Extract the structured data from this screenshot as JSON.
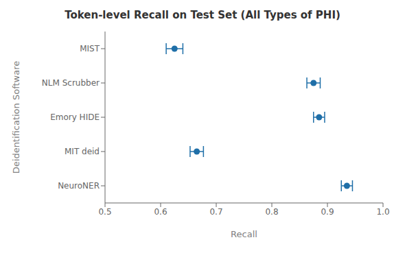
{
  "chart_data": {
    "type": "scatter",
    "title": "Token-level Recall on Test Set (All Types of PHI)",
    "xlabel": "Recall",
    "ylabel": "Deidentification Software",
    "categories": [
      "MIST",
      "NLM Scrubber",
      "Emory HIDE",
      "MIT deid",
      "NeuroNER"
    ],
    "values": [
      0.625,
      0.875,
      0.885,
      0.665,
      0.935
    ],
    "xerr_low": [
      0.015,
      0.012,
      0.01,
      0.012,
      0.01
    ],
    "xerr_high": [
      0.015,
      0.012,
      0.01,
      0.012,
      0.01
    ],
    "xlim": [
      0.5,
      1.0
    ],
    "xticks": [
      0.5,
      0.6,
      0.7,
      0.8,
      0.9,
      {
        "value": 1,
        "label": "1.0"
      }
    ],
    "color": "#1f6fa8",
    "marker": "circle",
    "grid": false
  }
}
